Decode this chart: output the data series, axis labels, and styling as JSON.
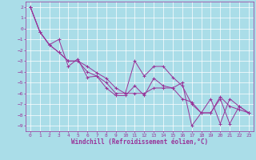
{
  "xlabel": "Windchill (Refroidissement éolien,°C)",
  "ylabel": "",
  "background_color": "#aadde8",
  "grid_color": "#ffffff",
  "line_color": "#993399",
  "marker_color": "#993399",
  "xlim": [
    -0.5,
    23.5
  ],
  "ylim": [
    -9.5,
    2.5
  ],
  "xticks": [
    0,
    1,
    2,
    3,
    4,
    5,
    6,
    7,
    8,
    9,
    10,
    11,
    12,
    13,
    14,
    15,
    16,
    17,
    18,
    19,
    20,
    21,
    22,
    23
  ],
  "yticks": [
    2,
    1,
    0,
    -1,
    -2,
    -3,
    -4,
    -5,
    -6,
    -7,
    -8,
    -9
  ],
  "series": [
    [
      2.0,
      -0.3,
      -1.5,
      -2.2,
      -3.0,
      -3.0,
      -4.0,
      -4.4,
      -5.0,
      -6.0,
      -6.0,
      -3.0,
      -4.4,
      -3.5,
      -3.5,
      -4.5,
      -5.3,
      -7.0,
      -7.8,
      -7.8,
      -6.3,
      -7.2,
      -7.5,
      -7.8
    ],
    [
      2.0,
      -0.3,
      -1.5,
      -1.0,
      -3.5,
      -2.8,
      -4.5,
      -4.4,
      -5.5,
      -6.2,
      -6.2,
      -5.3,
      -6.2,
      -4.6,
      -5.3,
      -5.5,
      -5.0,
      -9.0,
      -7.8,
      -6.5,
      -8.8,
      -6.5,
      -7.2,
      -7.8
    ],
    [
      2.0,
      -0.3,
      -1.5,
      -2.2,
      -3.0,
      -3.0,
      -3.5,
      -4.1,
      -4.6,
      -5.5,
      -6.0,
      -6.0,
      -6.0,
      -5.5,
      -5.5,
      -5.5,
      -6.5,
      -6.8,
      -7.8,
      -7.8,
      -6.5,
      -8.8,
      -7.2,
      -7.8
    ]
  ],
  "xlabel_fontsize": 5.5,
  "tick_fontsize": 4.5,
  "linewidth": 0.7,
  "markersize": 2.5,
  "markeredgewidth": 0.7
}
